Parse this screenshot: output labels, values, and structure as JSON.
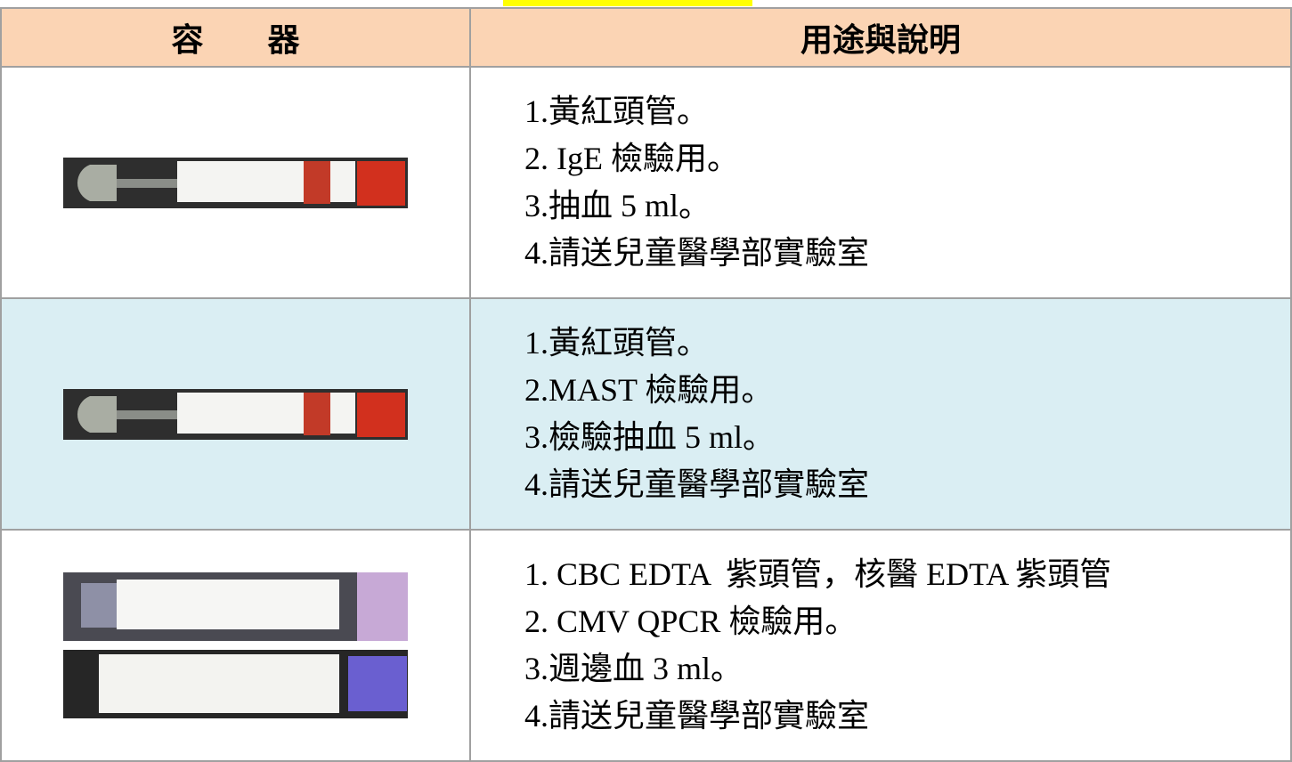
{
  "table": {
    "header": [
      "容　　器",
      "用途與說明"
    ],
    "rows": [
      {
        "lines": [
          "1.黃紅頭管。",
          "2. IgE 檢驗用。",
          "3.抽血 5 ml。",
          "4.請送兒童醫學部實驗室"
        ]
      },
      {
        "lines": [
          "1.黃紅頭管。",
          "2.MAST 檢驗用。",
          "3.檢驗抽血 5 ml。",
          "4.請送兒童醫學部實驗室"
        ]
      },
      {
        "lines": [
          "1. CBC EDTA  紫頭管，核醫 EDTA 紫頭管",
          "2. CMV QPCR 檢驗用。",
          "3.週邊血 3 ml。",
          "4.請送兒童醫學部實驗室"
        ]
      }
    ]
  }
}
